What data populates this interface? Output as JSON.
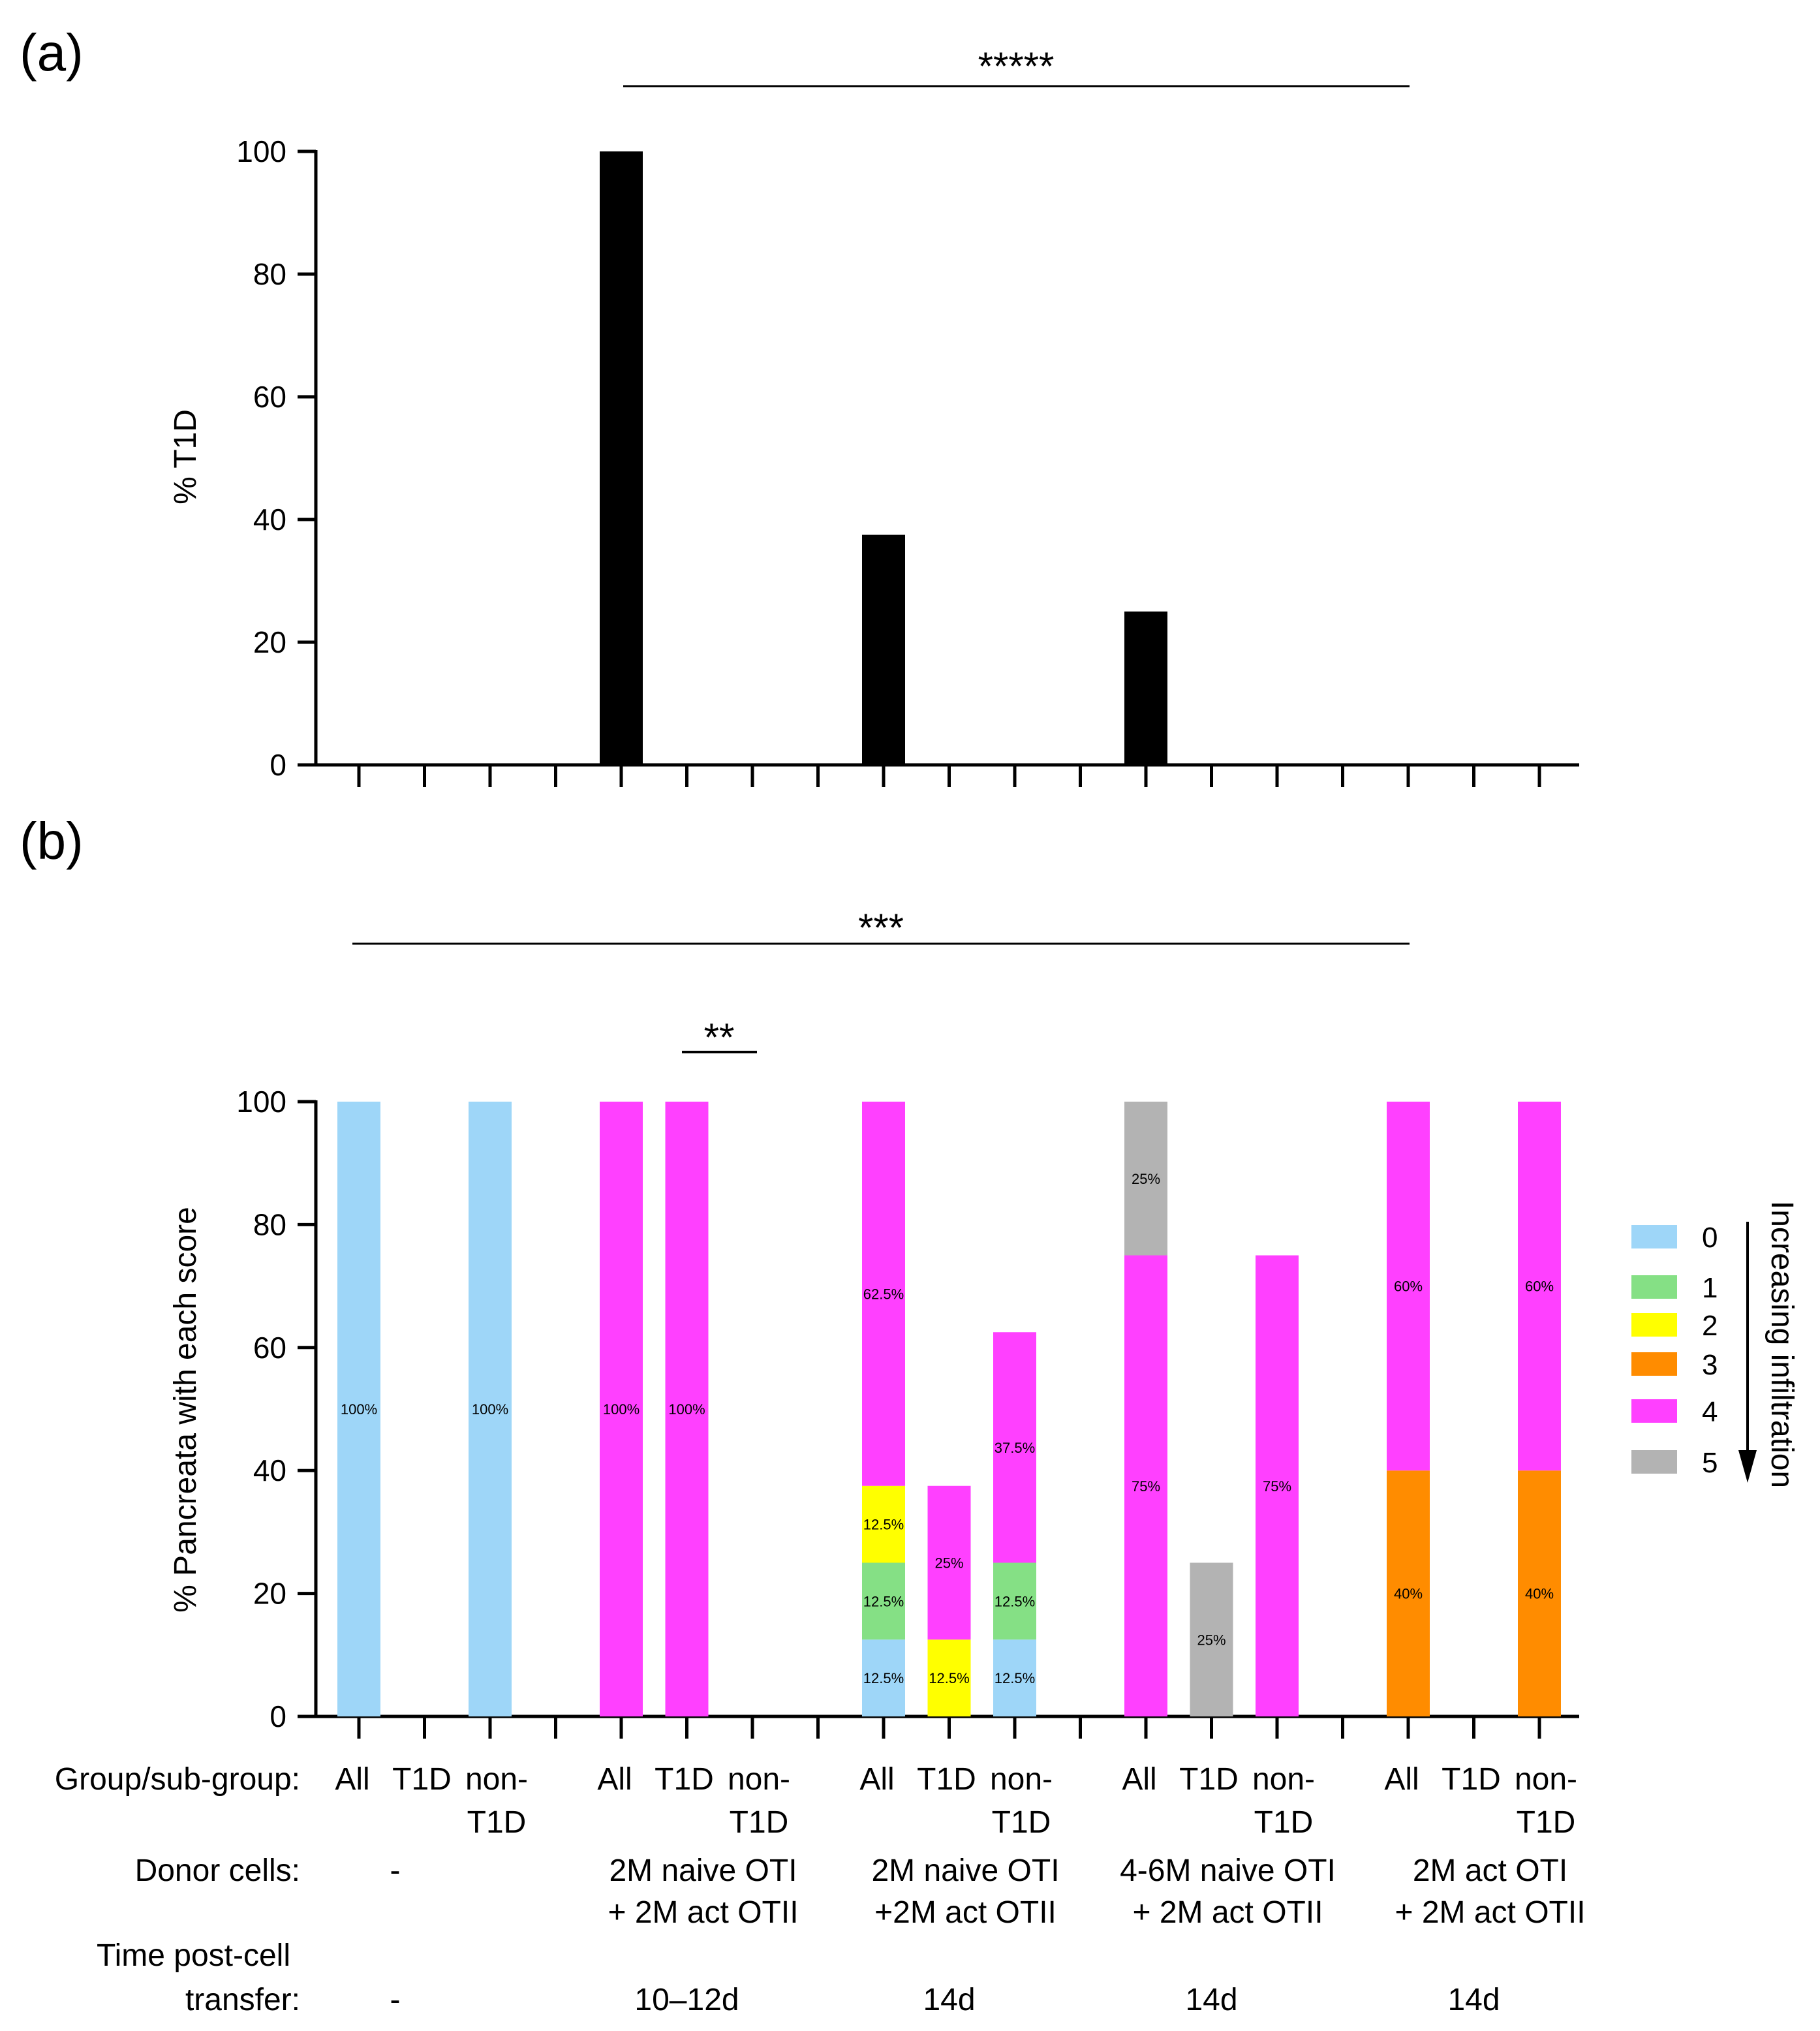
{
  "panel_a": {
    "label": "(a)",
    "significance": "*****",
    "chart_data": {
      "type": "bar",
      "ylabel": "% T1D",
      "ylim": [
        0,
        100
      ],
      "yticks": [
        0,
        20,
        40,
        60,
        80,
        100
      ],
      "categories": [
        "All",
        "T1D",
        "non-T1D",
        "",
        "All",
        "T1D",
        "non-T1D",
        "",
        "All",
        "T1D",
        "non-T1D",
        "",
        "All",
        "T1D",
        "non-T1D",
        "",
        "All",
        "T1D",
        "non-T1D"
      ],
      "values": [
        0,
        0,
        0,
        0,
        100,
        0,
        0,
        0,
        37.5,
        0,
        0,
        0,
        25,
        0,
        0,
        0,
        0,
        0,
        0
      ],
      "color": "#000000"
    }
  },
  "panel_b": {
    "label": "(b)",
    "significance_top": "***",
    "significance_inner": "**",
    "chart_data": {
      "type": "stacked-bar",
      "ylabel": "% Pancreata with each score",
      "ylim": [
        0,
        100
      ],
      "yticks": [
        0,
        20,
        40,
        60,
        80,
        100
      ],
      "score_colors": {
        "0": "#9ed6f8",
        "1": "#85e085",
        "2": "#ffff00",
        "3": "#ff8c00",
        "4": "#ff40ff",
        "5": "#b3b3b3"
      },
      "bars": [
        {
          "slot": 0,
          "segments": [
            {
              "score": "0",
              "value": 100,
              "label": "100%"
            }
          ]
        },
        {
          "slot": 2,
          "segments": [
            {
              "score": "0",
              "value": 100,
              "label": "100%"
            }
          ]
        },
        {
          "slot": 4,
          "segments": [
            {
              "score": "4",
              "value": 100,
              "label": "100%"
            }
          ]
        },
        {
          "slot": 5,
          "segments": [
            {
              "score": "4",
              "value": 100,
              "label": "100%"
            }
          ]
        },
        {
          "slot": 8,
          "segments": [
            {
              "score": "0",
              "value": 12.5,
              "label": "12.5%"
            },
            {
              "score": "1",
              "value": 12.5,
              "label": "12.5%"
            },
            {
              "score": "2",
              "value": 12.5,
              "label": "12.5%"
            },
            {
              "score": "4",
              "value": 62.5,
              "label": "62.5%"
            }
          ]
        },
        {
          "slot": 9,
          "segments": [
            {
              "score": "2",
              "value": 12.5,
              "label": "12.5%"
            },
            {
              "score": "4",
              "value": 25,
              "label": "25%"
            }
          ]
        },
        {
          "slot": 10,
          "segments": [
            {
              "score": "0",
              "value": 12.5,
              "label": "12.5%"
            },
            {
              "score": "1",
              "value": 12.5,
              "label": "12.5%"
            },
            {
              "score": "4",
              "value": 37.5,
              "label": "37.5%"
            }
          ]
        },
        {
          "slot": 12,
          "segments": [
            {
              "score": "4",
              "value": 75,
              "label": "75%"
            },
            {
              "score": "5",
              "value": 25,
              "label": "25%"
            }
          ]
        },
        {
          "slot": 13,
          "segments": [
            {
              "score": "5",
              "value": 25,
              "label": "25%"
            }
          ]
        },
        {
          "slot": 14,
          "segments": [
            {
              "score": "4",
              "value": 75,
              "label": "75%"
            }
          ]
        },
        {
          "slot": 16,
          "segments": [
            {
              "score": "3",
              "value": 40,
              "label": "40%"
            },
            {
              "score": "4",
              "value": 60,
              "label": "60%"
            }
          ]
        },
        {
          "slot": 18,
          "segments": [
            {
              "score": "3",
              "value": 40,
              "label": "40%"
            },
            {
              "score": "4",
              "value": 60,
              "label": "60%"
            }
          ]
        }
      ],
      "legend": [
        {
          "score": "0",
          "label": "0"
        },
        {
          "score": "1",
          "label": "1"
        },
        {
          "score": "2",
          "label": "2"
        },
        {
          "score": "3",
          "label": "3"
        },
        {
          "score": "4",
          "label": "4"
        },
        {
          "score": "5",
          "label": "5"
        }
      ],
      "legend_arrow_label": "Increasing infiltration"
    }
  },
  "table": {
    "group_row_label": "Group/sub-group:",
    "donor_row_label": "Donor cells:",
    "time_row_label_line1": "Time post-cell",
    "time_row_label_line2": "transfer:",
    "subgroups": [
      {
        "all": "All",
        "t1d": "T1D",
        "non1": "non-",
        "non2": "T1D"
      },
      {
        "all": "All",
        "t1d": "T1D",
        "non1": "non-",
        "non2": "T1D"
      },
      {
        "all": "All",
        "t1d": "T1D",
        "non1": "non-",
        "non2": "T1D"
      },
      {
        "all": "All",
        "t1d": "T1D",
        "non1": "non-",
        "non2": "T1D"
      },
      {
        "all": "All",
        "t1d": "T1D",
        "non1": "non-",
        "non2": "T1D"
      }
    ],
    "donor_cells": [
      {
        "line1": "-",
        "line2": ""
      },
      {
        "line1": "2M naive OTI",
        "line2": "+ 2M act OTII"
      },
      {
        "line1": "2M naive OTI",
        "line2": "+2M act OTII"
      },
      {
        "line1": "4-6M naive OTI",
        "line2": "+ 2M act OTII"
      },
      {
        "line1": "2M act OTI",
        "line2": "+ 2M act OTII"
      }
    ],
    "time_post_transfer": [
      "-",
      "10–12d",
      "14d",
      "14d",
      "14d"
    ]
  }
}
